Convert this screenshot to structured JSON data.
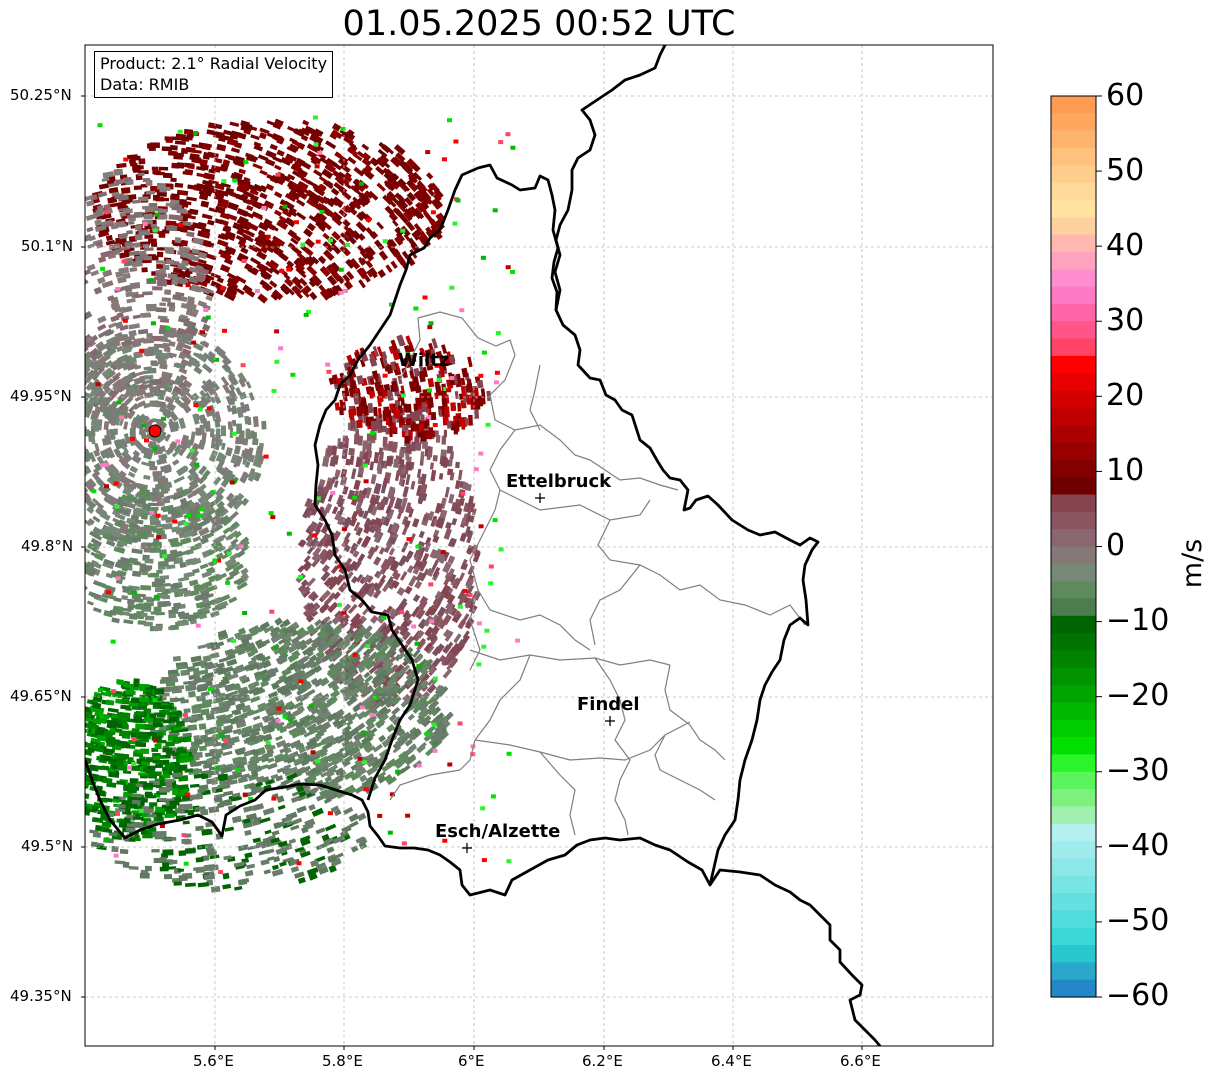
{
  "map": {
    "title": "01.05.2025 00:52 UTC",
    "info_lines": [
      "Product: 2.1° Radial Velocity",
      "Data: RMIB"
    ],
    "lon_ticks": [
      "5.6°E",
      "5.8°E",
      "6°E",
      "6.2°E",
      "6.4°E",
      "6.6°E"
    ],
    "lat_ticks": [
      "50.25°N",
      "50.1°N",
      "49.95°N",
      "49.8°N",
      "49.65°N",
      "49.5°N",
      "49.35°N"
    ],
    "cities": [
      {
        "name": "Wiltz"
      },
      {
        "name": "Ettelbruck"
      },
      {
        "name": "Findel"
      },
      {
        "name": "Esch/Alzette"
      }
    ],
    "radar_site_marker": "red-dot",
    "colors": {
      "border": "#000000",
      "canton_lines": "#7f7f7f",
      "grid": "#bbbbbb",
      "radar_dot": "#ff0000"
    }
  },
  "colorbar": {
    "label": "m/s",
    "ticks": [
      "60",
      "50",
      "40",
      "30",
      "20",
      "10",
      "0",
      "−10",
      "−20",
      "−30",
      "−40",
      "−50",
      "−60"
    ],
    "range": [
      -60,
      60
    ],
    "colors_top_to_bottom": [
      "#ff9b52",
      "#ffa75f",
      "#ffb46e",
      "#ffc17d",
      "#ffcd8c",
      "#ffd999",
      "#ffe39f",
      "#ffd0a0",
      "#ffb8b0",
      "#ffa2c0",
      "#ff8ed0",
      "#ff7ac4",
      "#ff66a8",
      "#ff5588",
      "#ff4466",
      "#ff0000",
      "#e80000",
      "#d40000",
      "#c00000",
      "#ac0000",
      "#980000",
      "#840000",
      "#700000",
      "#844450",
      "#8a5560",
      "#8a6670",
      "#857877",
      "#768876",
      "#5e8a5e",
      "#4d7d4d",
      "#006400",
      "#007400",
      "#008400",
      "#009400",
      "#00a400",
      "#00b800",
      "#00cc00",
      "#00e000",
      "#2af42a",
      "#5cf45c",
      "#7ef07e",
      "#a0f0b0",
      "#b4f0f0",
      "#a0ecec",
      "#8ce8e8",
      "#78e4e4",
      "#64e0e0",
      "#50dcdc",
      "#3cd8d8",
      "#28c8d0",
      "#2aa8cc",
      "#2288c8"
    ]
  }
}
